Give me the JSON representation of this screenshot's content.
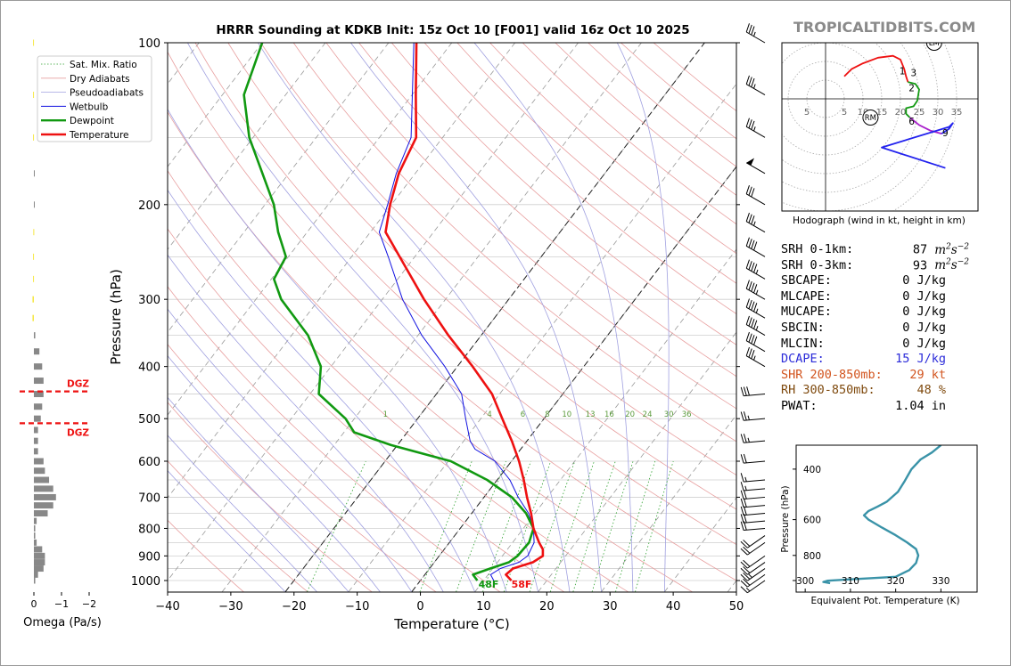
{
  "watermark": "TROPICALTIDBITS.COM",
  "chart_data": [
    {
      "type": "line",
      "name": "skewt",
      "title": "HRRR Sounding at KDKB Init: 15z Oct 10 [F001] valid 16z Oct 10 2025",
      "xlabel": "Temperature (°C)",
      "ylabel": "Pressure (hPa)",
      "xlim": [
        -40,
        50
      ],
      "ylim": [
        1050,
        100
      ],
      "x_ticks": [
        -40,
        -30,
        -20,
        -10,
        0,
        10,
        20,
        30,
        40,
        50
      ],
      "y_ticks": [
        100,
        200,
        300,
        400,
        500,
        600,
        700,
        800,
        900,
        1000
      ],
      "y_tick_labels": [
        "100",
        "200",
        "300",
        "400",
        "500",
        "600",
        "700",
        "800",
        "900",
        "1000"
      ],
      "x_tick_labels": [
        "−40",
        "−30",
        "−20",
        "−10",
        "0",
        "10",
        "20",
        "30",
        "40",
        "50"
      ],
      "log_y": true,
      "legend": {
        "placement": "top-left",
        "entries": [
          {
            "label": "Sat. Mix. Ratio",
            "color": "#2ca02c",
            "style": "dotted"
          },
          {
            "label": "Dry Adiabats",
            "color": "#e8a0a0",
            "style": "solid"
          },
          {
            "label": "Pseudoadiabats",
            "color": "#a0a0e0",
            "style": "solid"
          },
          {
            "label": "Wetbulb",
            "color": "#1010e0",
            "style": "solid"
          },
          {
            "label": "Dewpoint",
            "color": "#119911",
            "style": "bold"
          },
          {
            "label": "Temperature",
            "color": "#ee1111",
            "style": "bold"
          }
        ]
      },
      "mixing_ratio_labels": [
        "1",
        "4",
        "6",
        "8",
        "10",
        "13",
        "16",
        "20",
        "24",
        "30",
        "36"
      ],
      "mixing_ratio_values": [
        1,
        4,
        6,
        8,
        10,
        13,
        16,
        20,
        24,
        30,
        36
      ],
      "surface_temp_label": "58F",
      "surface_dewpoint_label": "48F",
      "series": [
        {
          "name": "Temperature",
          "color": "#ee1111",
          "points": [
            [
              1000,
              14.4
            ],
            [
              975,
              12.8
            ],
            [
              950,
              13.2
            ],
            [
              925,
              15.6
            ],
            [
              900,
              16.4
            ],
            [
              875,
              15.6
            ],
            [
              850,
              14.2
            ],
            [
              800,
              11.6
            ],
            [
              750,
              9.4
            ],
            [
              700,
              6.8
            ],
            [
              650,
              4.2
            ],
            [
              600,
              1.2
            ],
            [
              550,
              -2.4
            ],
            [
              500,
              -6.6
            ],
            [
              450,
              -11.2
            ],
            [
              400,
              -17.6
            ],
            [
              350,
              -25.2
            ],
            [
              300,
              -33.4
            ],
            [
              250,
              -42.4
            ],
            [
              225,
              -47.6
            ],
            [
              200,
              -50.2
            ],
            [
              175,
              -52.6
            ],
            [
              150,
              -54.2
            ],
            [
              125,
              -59.4
            ],
            [
              100,
              -65.6
            ]
          ]
        },
        {
          "name": "Dewpoint",
          "color": "#119911",
          "points": [
            [
              1000,
              9.0
            ],
            [
              975,
              7.6
            ],
            [
              950,
              9.6
            ],
            [
              925,
              11.8
            ],
            [
              900,
              12.4
            ],
            [
              850,
              12.6
            ],
            [
              800,
              11.6
            ],
            [
              750,
              8.6
            ],
            [
              700,
              4.4
            ],
            [
              650,
              -1.6
            ],
            [
              600,
              -9.6
            ],
            [
              560,
              -21.0
            ],
            [
              530,
              -28.4
            ],
            [
              500,
              -31.4
            ],
            [
              450,
              -38.6
            ],
            [
              400,
              -41.6
            ],
            [
              350,
              -47.4
            ],
            [
              300,
              -56.0
            ],
            [
              275,
              -59.6
            ],
            [
              250,
              -60.4
            ],
            [
              225,
              -64.6
            ],
            [
              200,
              -68.6
            ],
            [
              150,
              -80.6
            ],
            [
              125,
              -86.6
            ],
            [
              100,
              -90.0
            ]
          ]
        },
        {
          "name": "Wetbulb",
          "color": "#1010e0",
          "points": [
            [
              1000,
              11.6
            ],
            [
              975,
              10.4
            ],
            [
              950,
              11.2
            ],
            [
              925,
              13.4
            ],
            [
              900,
              14.0
            ],
            [
              850,
              13.4
            ],
            [
              800,
              11.6
            ],
            [
              750,
              9.0
            ],
            [
              700,
              5.4
            ],
            [
              650,
              2.0
            ],
            [
              600,
              -2.6
            ],
            [
              570,
              -7.2
            ],
            [
              550,
              -9.0
            ],
            [
              500,
              -12.4
            ],
            [
              450,
              -16.0
            ],
            [
              400,
              -22.0
            ],
            [
              350,
              -29.4
            ],
            [
              300,
              -36.8
            ],
            [
              250,
              -44.2
            ],
            [
              225,
              -48.6
            ],
            [
              200,
              -50.6
            ],
            [
              175,
              -53.0
            ],
            [
              150,
              -55.0
            ],
            [
              100,
              -66.0
            ]
          ]
        }
      ],
      "wind_barbs_kt": [
        {
          "p": 1000,
          "speed": 15
        },
        {
          "p": 975,
          "speed": 20
        },
        {
          "p": 950,
          "speed": 25
        },
        {
          "p": 925,
          "speed": 20
        },
        {
          "p": 900,
          "speed": 20
        },
        {
          "p": 850,
          "speed": 20
        },
        {
          "p": 825,
          "speed": 20
        },
        {
          "p": 800,
          "speed": 20
        },
        {
          "p": 775,
          "speed": 20
        },
        {
          "p": 750,
          "speed": 20
        },
        {
          "p": 725,
          "speed": 20
        },
        {
          "p": 700,
          "speed": 20
        },
        {
          "p": 675,
          "speed": 15
        },
        {
          "p": 650,
          "speed": 15
        },
        {
          "p": 600,
          "speed": 20
        },
        {
          "p": 550,
          "speed": 25
        },
        {
          "p": 500,
          "speed": 25
        },
        {
          "p": 450,
          "speed": 30
        },
        {
          "p": 400,
          "speed": 35
        },
        {
          "p": 375,
          "speed": 40
        },
        {
          "p": 350,
          "speed": 45
        },
        {
          "p": 325,
          "speed": 45
        },
        {
          "p": 300,
          "speed": 45
        },
        {
          "p": 275,
          "speed": 45
        },
        {
          "p": 250,
          "speed": 40
        },
        {
          "p": 225,
          "speed": 35
        },
        {
          "p": 200,
          "speed": 30
        },
        {
          "p": 175,
          "speed": 50
        },
        {
          "p": 150,
          "speed": 35
        },
        {
          "p": 125,
          "speed": 35
        },
        {
          "p": 100,
          "speed": 35
        }
      ]
    },
    {
      "type": "bar",
      "name": "omega",
      "xlabel": "Omega (Pa/s)",
      "x_ticks": [
        0,
        -1,
        -2
      ],
      "x_tick_labels": [
        "0",
        "−1",
        "−2"
      ],
      "xlim": [
        0.3,
        -2.3
      ],
      "dgz_label": "DGZ",
      "dgz_levels_hpa": [
        445,
        510
      ],
      "bars": [
        {
          "p": 1000,
          "omega": -0.05
        },
        {
          "p": 975,
          "omega": -0.15
        },
        {
          "p": 950,
          "omega": -0.35
        },
        {
          "p": 925,
          "omega": -0.4
        },
        {
          "p": 900,
          "omega": -0.4
        },
        {
          "p": 875,
          "omega": -0.3
        },
        {
          "p": 850,
          "omega": -0.1
        },
        {
          "p": 825,
          "omega": -0.05
        },
        {
          "p": 800,
          "omega": -0.05
        },
        {
          "p": 775,
          "omega": -0.1
        },
        {
          "p": 750,
          "omega": -0.5
        },
        {
          "p": 725,
          "omega": -0.7
        },
        {
          "p": 700,
          "omega": -0.8
        },
        {
          "p": 675,
          "omega": -0.7
        },
        {
          "p": 650,
          "omega": -0.55
        },
        {
          "p": 625,
          "omega": -0.4
        },
        {
          "p": 600,
          "omega": -0.35
        },
        {
          "p": 575,
          "omega": -0.15
        },
        {
          "p": 550,
          "omega": -0.15
        },
        {
          "p": 525,
          "omega": -0.15
        },
        {
          "p": 500,
          "omega": -0.25
        },
        {
          "p": 475,
          "omega": -0.3
        },
        {
          "p": 450,
          "omega": -0.35
        },
        {
          "p": 425,
          "omega": -0.35
        },
        {
          "p": 400,
          "omega": -0.3
        },
        {
          "p": 375,
          "omega": -0.2
        },
        {
          "p": 350,
          "omega": -0.05
        },
        {
          "p": 325,
          "omega": 0.05
        },
        {
          "p": 300,
          "omega": 0.05
        },
        {
          "p": 275,
          "omega": 0.03
        },
        {
          "p": 250,
          "omega": 0.03
        },
        {
          "p": 225,
          "omega": 0.02
        },
        {
          "p": 200,
          "omega": -0.03
        },
        {
          "p": 175,
          "omega": -0.03
        },
        {
          "p": 150,
          "omega": 0.03
        },
        {
          "p": 125,
          "omega": 0.03
        },
        {
          "p": 100,
          "omega": 0.03
        }
      ]
    },
    {
      "type": "line",
      "name": "hodograph",
      "title": "Hodograph (wind in kt, height in km)",
      "ring_labels": [
        "5",
        "5",
        "10",
        "15",
        "20",
        "25",
        "30",
        "35"
      ],
      "rings_kt": [
        5,
        10,
        15,
        20,
        25,
        30,
        35
      ],
      "markers": [
        {
          "label": "LM",
          "u": 29,
          "v": 15
        },
        {
          "label": "RM",
          "u": 12,
          "v": -5
        }
      ],
      "height_labels": [
        {
          "label": "1",
          "u": 20.5,
          "v": 7.5
        },
        {
          "label": "3",
          "u": 23.5,
          "v": 7
        },
        {
          "label": "2",
          "u": 23,
          "v": 3
        },
        {
          "label": "6",
          "u": 23,
          "v": -6
        },
        {
          "label": "9",
          "u": 32,
          "v": -9
        }
      ],
      "segments": [
        {
          "color": "#ee1111",
          "points": [
            [
              5,
              6
            ],
            [
              7,
              8
            ],
            [
              10,
              9.5
            ],
            [
              14,
              11
            ],
            [
              18,
              11.5
            ],
            [
              20,
              10.5
            ],
            [
              21,
              8
            ],
            [
              21.5,
              6
            ],
            [
              22,
              4.5
            ]
          ]
        },
        {
          "color": "#119911",
          "points": [
            [
              22,
              4.5
            ],
            [
              24,
              4
            ],
            [
              25,
              2.5
            ],
            [
              24.5,
              -0.5
            ],
            [
              23.5,
              -2
            ],
            [
              21.5,
              -2.5
            ],
            [
              21.5,
              -4
            ],
            [
              22.5,
              -5
            ]
          ]
        },
        {
          "color": "#aa22cc",
          "points": [
            [
              22.5,
              -5
            ],
            [
              25,
              -7
            ],
            [
              28,
              -8.5
            ],
            [
              31,
              -9.3
            ]
          ]
        },
        {
          "color": "#2222ee",
          "points": [
            [
              31,
              -9.3
            ],
            [
              33,
              -8
            ],
            [
              34,
              -6.5
            ],
            [
              33,
              -7.5
            ],
            [
              15,
              -13
            ],
            [
              32,
              -18.5
            ]
          ]
        }
      ]
    },
    {
      "type": "line",
      "name": "theta-e",
      "xlabel": "Equivalent Pot. Temperature (K)",
      "ylabel": "Pressure (hPa)",
      "x_ticks": [
        300,
        310,
        320,
        330
      ],
      "x_tick_labels": [
        "300",
        "310",
        "320",
        "330"
      ],
      "y_ticks": [
        400,
        600,
        800
      ],
      "y_tick_labels": [
        "400",
        "600",
        "800"
      ],
      "xlim": [
        298,
        338
      ],
      "ylim": [
        1000,
        330
      ],
      "series": [
        {
          "name": "theta-e",
          "color": "#3a93a8",
          "points": [
            [
              1000,
              305.5
            ],
            [
              990,
              304
            ],
            [
              980,
              305
            ],
            [
              970,
              310
            ],
            [
              950,
              320
            ],
            [
              900,
              323
            ],
            [
              850,
              324.5
            ],
            [
              800,
              325
            ],
            [
              760,
              324.5
            ],
            [
              720,
              322.5
            ],
            [
              680,
              320
            ],
            [
              640,
              317
            ],
            [
              600,
              314
            ],
            [
              580,
              313
            ],
            [
              560,
              314
            ],
            [
              540,
              316
            ],
            [
              520,
              318
            ],
            [
              480,
              320.5
            ],
            [
              440,
              322
            ],
            [
              400,
              323.5
            ],
            [
              370,
              325.5
            ],
            [
              350,
              328
            ],
            [
              330,
              330
            ]
          ]
        }
      ]
    }
  ],
  "stats": [
    {
      "label": "SRH 0-1km:",
      "value": "87",
      "unit": "m2s-2",
      "color": "#000000"
    },
    {
      "label": "SRH 0-3km:",
      "value": "93",
      "unit": "m2s-2",
      "color": "#000000"
    },
    {
      "label": "SBCAPE:",
      "value": "0 J/kg",
      "unit": "",
      "color": "#000000"
    },
    {
      "label": "MLCAPE:",
      "value": "0 J/kg",
      "unit": "",
      "color": "#000000"
    },
    {
      "label": "MUCAPE:",
      "value": "0 J/kg",
      "unit": "",
      "color": "#000000"
    },
    {
      "label": "SBCIN:",
      "value": "0 J/kg",
      "unit": "",
      "color": "#000000"
    },
    {
      "label": "MLCIN:",
      "value": "0 J/kg",
      "unit": "",
      "color": "#000000"
    },
    {
      "label": "DCAPE:",
      "value": "15 J/kg",
      "unit": "",
      "color": "#2b2bd9"
    },
    {
      "label": "SHR 200-850mb:",
      "value": "29 kt",
      "unit": "",
      "color": "#d2541e"
    },
    {
      "label": "RH 300-850mb:",
      "value": "48 %",
      "unit": "",
      "color": "#7f4a0e"
    },
    {
      "label": "PWAT:",
      "value": "1.04 in",
      "unit": "",
      "color": "#000000"
    }
  ],
  "colors": {
    "temperature": "#ee1111",
    "dewpoint": "#119911",
    "wetbulb": "#1010e0",
    "dry_adiabat": "#e8a0a0",
    "pseudoadiabat": "#a0a0e0",
    "mixing_ratio": "#2ca02c",
    "omega_bar": "#888888",
    "omega_positive": "#f5e642",
    "dgz": "#ee1111",
    "theta_e": "#3a93a8"
  }
}
